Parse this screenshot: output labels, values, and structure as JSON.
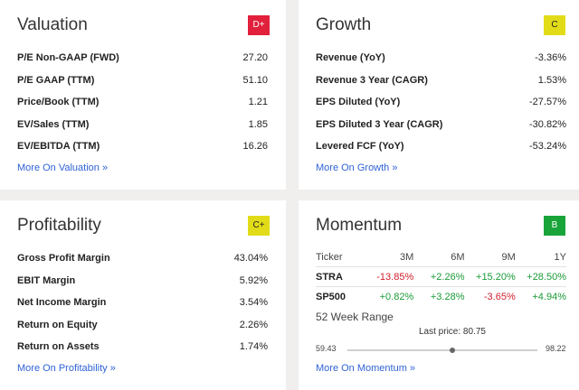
{
  "valuation": {
    "title": "Valuation",
    "grade": "D+",
    "rows": [
      {
        "label": "P/E Non-GAAP (FWD)",
        "value": "27.20"
      },
      {
        "label": "P/E GAAP (TTM)",
        "value": "51.10"
      },
      {
        "label": "Price/Book (TTM)",
        "value": "1.21"
      },
      {
        "label": "EV/Sales (TTM)",
        "value": "1.85"
      },
      {
        "label": "EV/EBITDA (TTM)",
        "value": "16.26"
      }
    ],
    "more": "More On Valuation »"
  },
  "growth": {
    "title": "Growth",
    "grade": "C",
    "rows": [
      {
        "label": "Revenue (YoY)",
        "value": "-3.36%"
      },
      {
        "label": "Revenue 3 Year (CAGR)",
        "value": "1.53%"
      },
      {
        "label": "EPS Diluted (YoY)",
        "value": "-27.57%"
      },
      {
        "label": "EPS Diluted 3 Year (CAGR)",
        "value": "-30.82%"
      },
      {
        "label": "Levered FCF (YoY)",
        "value": "-53.24%"
      }
    ],
    "more": "More On Growth »"
  },
  "profitability": {
    "title": "Profitability",
    "grade": "C+",
    "rows": [
      {
        "label": "Gross Profit Margin",
        "value": "43.04%"
      },
      {
        "label": "EBIT Margin",
        "value": "5.92%"
      },
      {
        "label": "Net Income Margin",
        "value": "3.54%"
      },
      {
        "label": "Return on Equity",
        "value": "2.26%"
      },
      {
        "label": "Return on Assets",
        "value": "1.74%"
      }
    ],
    "more": "More On Profitability »"
  },
  "momentum": {
    "title": "Momentum",
    "grade": "B",
    "headers": [
      "Ticker",
      "3M",
      "6M",
      "9M",
      "1Y"
    ],
    "rows": [
      {
        "ticker": "STRA",
        "values": [
          "-13.85%",
          "+2.26%",
          "+15.20%",
          "+28.50%"
        ]
      },
      {
        "ticker": "SP500",
        "values": [
          "+0.82%",
          "+3.28%",
          "-3.65%",
          "+4.94%"
        ]
      }
    ],
    "range_title": "52 Week Range",
    "last_price": "Last price: 80.75",
    "low": "59.43",
    "high": "98.22",
    "price_fraction": 0.55,
    "more": "More On Momentum »"
  },
  "colors": {
    "grade_red": "#e1203b",
    "grade_yellow": "#e2dc18",
    "grade_green": "#19a43a",
    "link": "#2f63d6",
    "negative": "#d0202d",
    "positive": "#1a9b37"
  }
}
